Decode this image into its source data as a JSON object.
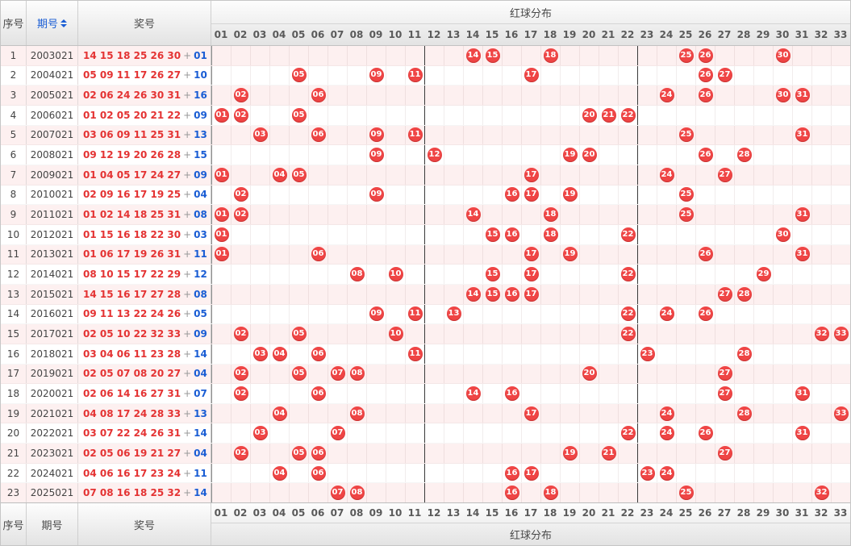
{
  "header": {
    "seq_label": "序号",
    "period_label": "期号",
    "prize_label": "奖号",
    "distribution_label": "红球分布"
  },
  "footer": {
    "seq_label": "序号",
    "period_label": "期号",
    "prize_label": "奖号",
    "distribution_label": "红球分布"
  },
  "columns": [
    "01",
    "02",
    "03",
    "04",
    "05",
    "06",
    "07",
    "08",
    "09",
    "10",
    "11",
    "12",
    "13",
    "14",
    "15",
    "16",
    "17",
    "18",
    "19",
    "20",
    "21",
    "22",
    "23",
    "24",
    "25",
    "26",
    "27",
    "28",
    "29",
    "30",
    "31",
    "32",
    "33"
  ],
  "colors": {
    "ball_red": "#ef4545",
    "prize_red_text": "#e43333",
    "prize_blue_text": "#1a5dd4",
    "row_alt_pink": "#fdf0f0"
  },
  "chart_data": {
    "type": "table",
    "title": "红球分布",
    "zone_breaks_after": [
      "11",
      "22"
    ],
    "rows": [
      {
        "seq": "1",
        "period": "2003021",
        "reds": [
          "14",
          "15",
          "18",
          "25",
          "26",
          "30"
        ],
        "plus": "+",
        "blue": "01"
      },
      {
        "seq": "2",
        "period": "2004021",
        "reds": [
          "05",
          "09",
          "11",
          "17",
          "26",
          "27"
        ],
        "plus": "+",
        "blue": "10"
      },
      {
        "seq": "3",
        "period": "2005021",
        "reds": [
          "02",
          "06",
          "24",
          "26",
          "30",
          "31"
        ],
        "plus": "+",
        "blue": "16"
      },
      {
        "seq": "4",
        "period": "2006021",
        "reds": [
          "01",
          "02",
          "05",
          "20",
          "21",
          "22"
        ],
        "plus": "+",
        "blue": "09"
      },
      {
        "seq": "5",
        "period": "2007021",
        "reds": [
          "03",
          "06",
          "09",
          "11",
          "25",
          "31"
        ],
        "plus": "+",
        "blue": "13"
      },
      {
        "seq": "6",
        "period": "2008021",
        "reds": [
          "09",
          "12",
          "19",
          "20",
          "26",
          "28"
        ],
        "plus": "+",
        "blue": "15"
      },
      {
        "seq": "7",
        "period": "2009021",
        "reds": [
          "01",
          "04",
          "05",
          "17",
          "24",
          "27"
        ],
        "plus": "+",
        "blue": "09"
      },
      {
        "seq": "8",
        "period": "2010021",
        "reds": [
          "02",
          "09",
          "16",
          "17",
          "19",
          "25"
        ],
        "plus": "+",
        "blue": "04"
      },
      {
        "seq": "9",
        "period": "2011021",
        "reds": [
          "01",
          "02",
          "14",
          "18",
          "25",
          "31"
        ],
        "plus": "+",
        "blue": "08"
      },
      {
        "seq": "10",
        "period": "2012021",
        "reds": [
          "01",
          "15",
          "16",
          "18",
          "22",
          "30"
        ],
        "plus": "+",
        "blue": "03"
      },
      {
        "seq": "11",
        "period": "2013021",
        "reds": [
          "01",
          "06",
          "17",
          "19",
          "26",
          "31"
        ],
        "plus": "+",
        "blue": "11"
      },
      {
        "seq": "12",
        "period": "2014021",
        "reds": [
          "08",
          "10",
          "15",
          "17",
          "22",
          "29"
        ],
        "plus": "+",
        "blue": "12"
      },
      {
        "seq": "13",
        "period": "2015021",
        "reds": [
          "14",
          "15",
          "16",
          "17",
          "27",
          "28"
        ],
        "plus": "+",
        "blue": "08"
      },
      {
        "seq": "14",
        "period": "2016021",
        "reds": [
          "09",
          "11",
          "13",
          "22",
          "24",
          "26"
        ],
        "plus": "+",
        "blue": "05"
      },
      {
        "seq": "15",
        "period": "2017021",
        "reds": [
          "02",
          "05",
          "10",
          "22",
          "32",
          "33"
        ],
        "plus": "+",
        "blue": "09"
      },
      {
        "seq": "16",
        "period": "2018021",
        "reds": [
          "03",
          "04",
          "06",
          "11",
          "23",
          "28"
        ],
        "plus": "+",
        "blue": "14"
      },
      {
        "seq": "17",
        "period": "2019021",
        "reds": [
          "02",
          "05",
          "07",
          "08",
          "20",
          "27"
        ],
        "plus": "+",
        "blue": "04"
      },
      {
        "seq": "18",
        "period": "2020021",
        "reds": [
          "02",
          "06",
          "14",
          "16",
          "27",
          "31"
        ],
        "plus": "+",
        "blue": "07"
      },
      {
        "seq": "19",
        "period": "2021021",
        "reds": [
          "04",
          "08",
          "17",
          "24",
          "28",
          "33"
        ],
        "plus": "+",
        "blue": "13"
      },
      {
        "seq": "20",
        "period": "2022021",
        "reds": [
          "03",
          "07",
          "22",
          "24",
          "26",
          "31"
        ],
        "plus": "+",
        "blue": "14"
      },
      {
        "seq": "21",
        "period": "2023021",
        "reds": [
          "02",
          "05",
          "06",
          "19",
          "21",
          "27"
        ],
        "plus": "+",
        "blue": "04"
      },
      {
        "seq": "22",
        "period": "2024021",
        "reds": [
          "04",
          "06",
          "16",
          "17",
          "23",
          "24"
        ],
        "plus": "+",
        "blue": "11"
      },
      {
        "seq": "23",
        "period": "2025021",
        "reds": [
          "07",
          "08",
          "16",
          "18",
          "25",
          "32"
        ],
        "plus": "+",
        "blue": "14"
      }
    ]
  }
}
